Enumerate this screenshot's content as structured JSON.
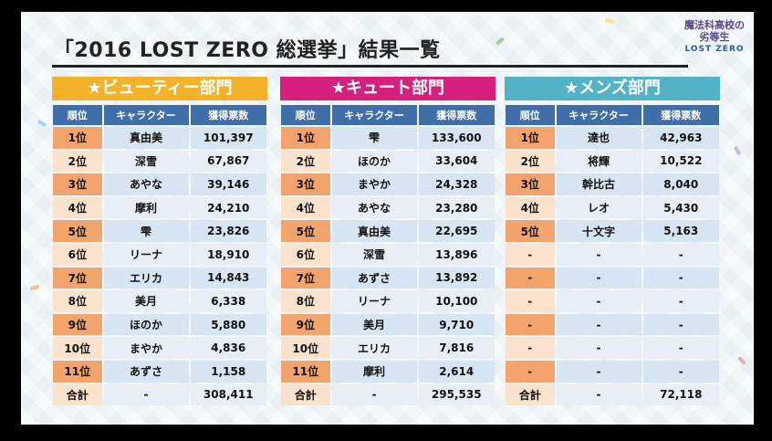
{
  "title": "「2016 LOST ZERO 総選挙」結果一覧",
  "logo": {
    "line1": "魔法科高校の",
    "line2": "劣等生",
    "sub": "LOST ZERO"
  },
  "columns": {
    "rank": "順位",
    "character": "キャラクター",
    "votes": "獲得票数"
  },
  "categories": [
    {
      "label": "★ビューティー部門",
      "rows": [
        {
          "rank": "1位",
          "name": "真由美",
          "votes": "101,397"
        },
        {
          "rank": "2位",
          "name": "深雪",
          "votes": "67,867"
        },
        {
          "rank": "3位",
          "name": "あやな",
          "votes": "39,146"
        },
        {
          "rank": "4位",
          "name": "摩利",
          "votes": "24,210"
        },
        {
          "rank": "5位",
          "name": "雫",
          "votes": "23,826"
        },
        {
          "rank": "6位",
          "name": "リーナ",
          "votes": "18,910"
        },
        {
          "rank": "7位",
          "name": "エリカ",
          "votes": "14,843"
        },
        {
          "rank": "8位",
          "name": "美月",
          "votes": "6,338"
        },
        {
          "rank": "9位",
          "name": "ほのか",
          "votes": "5,880"
        },
        {
          "rank": "10位",
          "name": "まやか",
          "votes": "4,836"
        },
        {
          "rank": "11位",
          "name": "あずさ",
          "votes": "1,158"
        }
      ],
      "total": {
        "rank": "合計",
        "name": "-",
        "votes": "308,411"
      }
    },
    {
      "label": "★キュート部門",
      "rows": [
        {
          "rank": "1位",
          "name": "雫",
          "votes": "133,600"
        },
        {
          "rank": "2位",
          "name": "ほのか",
          "votes": "33,604"
        },
        {
          "rank": "3位",
          "name": "まやか",
          "votes": "24,328"
        },
        {
          "rank": "4位",
          "name": "あやな",
          "votes": "23,280"
        },
        {
          "rank": "5位",
          "name": "真由美",
          "votes": "22,695"
        },
        {
          "rank": "6位",
          "name": "深雪",
          "votes": "13,896"
        },
        {
          "rank": "7位",
          "name": "あずさ",
          "votes": "13,892"
        },
        {
          "rank": "8位",
          "name": "リーナ",
          "votes": "10,100"
        },
        {
          "rank": "9位",
          "name": "美月",
          "votes": "9,710"
        },
        {
          "rank": "10位",
          "name": "エリカ",
          "votes": "7,816"
        },
        {
          "rank": "11位",
          "name": "摩利",
          "votes": "2,614"
        }
      ],
      "total": {
        "rank": "合計",
        "name": "-",
        "votes": "295,535"
      }
    },
    {
      "label": "★メンズ部門",
      "rows": [
        {
          "rank": "1位",
          "name": "達也",
          "votes": "42,963"
        },
        {
          "rank": "2位",
          "name": "将輝",
          "votes": "10,522"
        },
        {
          "rank": "3位",
          "name": "幹比古",
          "votes": "8,040"
        },
        {
          "rank": "4位",
          "name": "レオ",
          "votes": "5,430"
        },
        {
          "rank": "5位",
          "name": "十文字",
          "votes": "5,163"
        },
        {
          "rank": "-",
          "name": "-",
          "votes": "-"
        },
        {
          "rank": "-",
          "name": "-",
          "votes": "-"
        },
        {
          "rank": "-",
          "name": "-",
          "votes": "-"
        },
        {
          "rank": "-",
          "name": "-",
          "votes": "-"
        },
        {
          "rank": "-",
          "name": "-",
          "votes": "-"
        },
        {
          "rank": "-",
          "name": "-",
          "votes": "-"
        }
      ],
      "total": {
        "rank": "合計",
        "name": "-",
        "votes": "72,118"
      }
    }
  ]
}
